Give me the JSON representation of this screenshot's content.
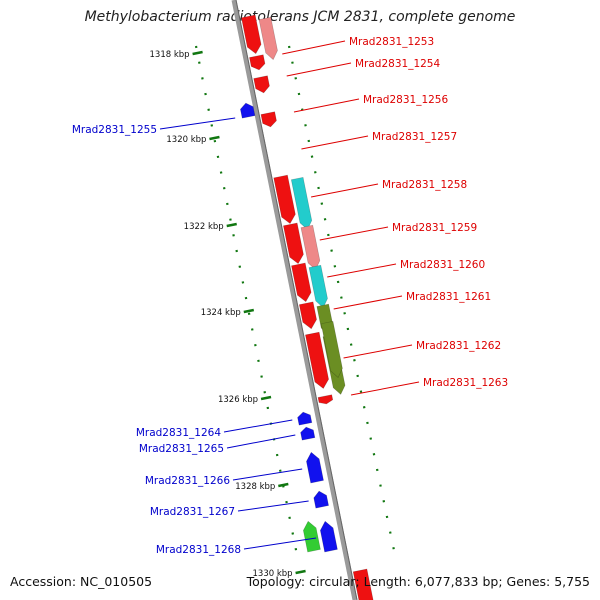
{
  "title": "Methylobacterium radiotolerans JCM 2831, complete genome",
  "accession": "Accession: NC_010505",
  "topology": "Topology: circular; Length: 6,077,833 bp; Genes: 5,755",
  "colors": {
    "forward_gene": "#ee1111",
    "reverse_gene": "#1111ee",
    "forward_label": "#dd0000",
    "reverse_label": "#0000cc",
    "backbone": "#888888",
    "tick": "#117711",
    "cog_olive": "#6b8e23",
    "cog_cyan": "#22cccc",
    "cog_pink": "#ee8888",
    "cog_grey": "#bbbbbb",
    "cog_green": "#33cc33"
  },
  "ticks": [
    "1318 kbp",
    "1320 kbp",
    "1322 kbp",
    "1324 kbp",
    "1326 kbp",
    "1328 kbp",
    "1330 kbp"
  ],
  "forward_genes": [
    {
      "label": "Mrad2831_1253",
      "cog": "cog_pink"
    },
    {
      "label": "Mrad2831_1254",
      "cog": ""
    },
    {
      "label": "Mrad2831_1256",
      "cog": ""
    },
    {
      "label": "Mrad2831_1257",
      "cog": ""
    },
    {
      "label": "Mrad2831_1258",
      "cog": "cog_cyan"
    },
    {
      "label": "Mrad2831_1259",
      "cog": "cog_pink"
    },
    {
      "label": "Mrad2831_1260",
      "cog": "cog_cyan"
    },
    {
      "label": "Mrad2831_1261",
      "cog": "cog_olive"
    },
    {
      "label": "Mrad2831_1262",
      "cog": "cog_olive"
    },
    {
      "label": "Mrad2831_1263",
      "cog": ""
    }
  ],
  "reverse_genes": [
    {
      "label": "Mrad2831_1255"
    },
    {
      "label": "Mrad2831_1264"
    },
    {
      "label": "Mrad2831_1265"
    },
    {
      "label": "Mrad2831_1266"
    },
    {
      "label": "Mrad2831_1267"
    },
    {
      "label": "Mrad2831_1268"
    }
  ]
}
